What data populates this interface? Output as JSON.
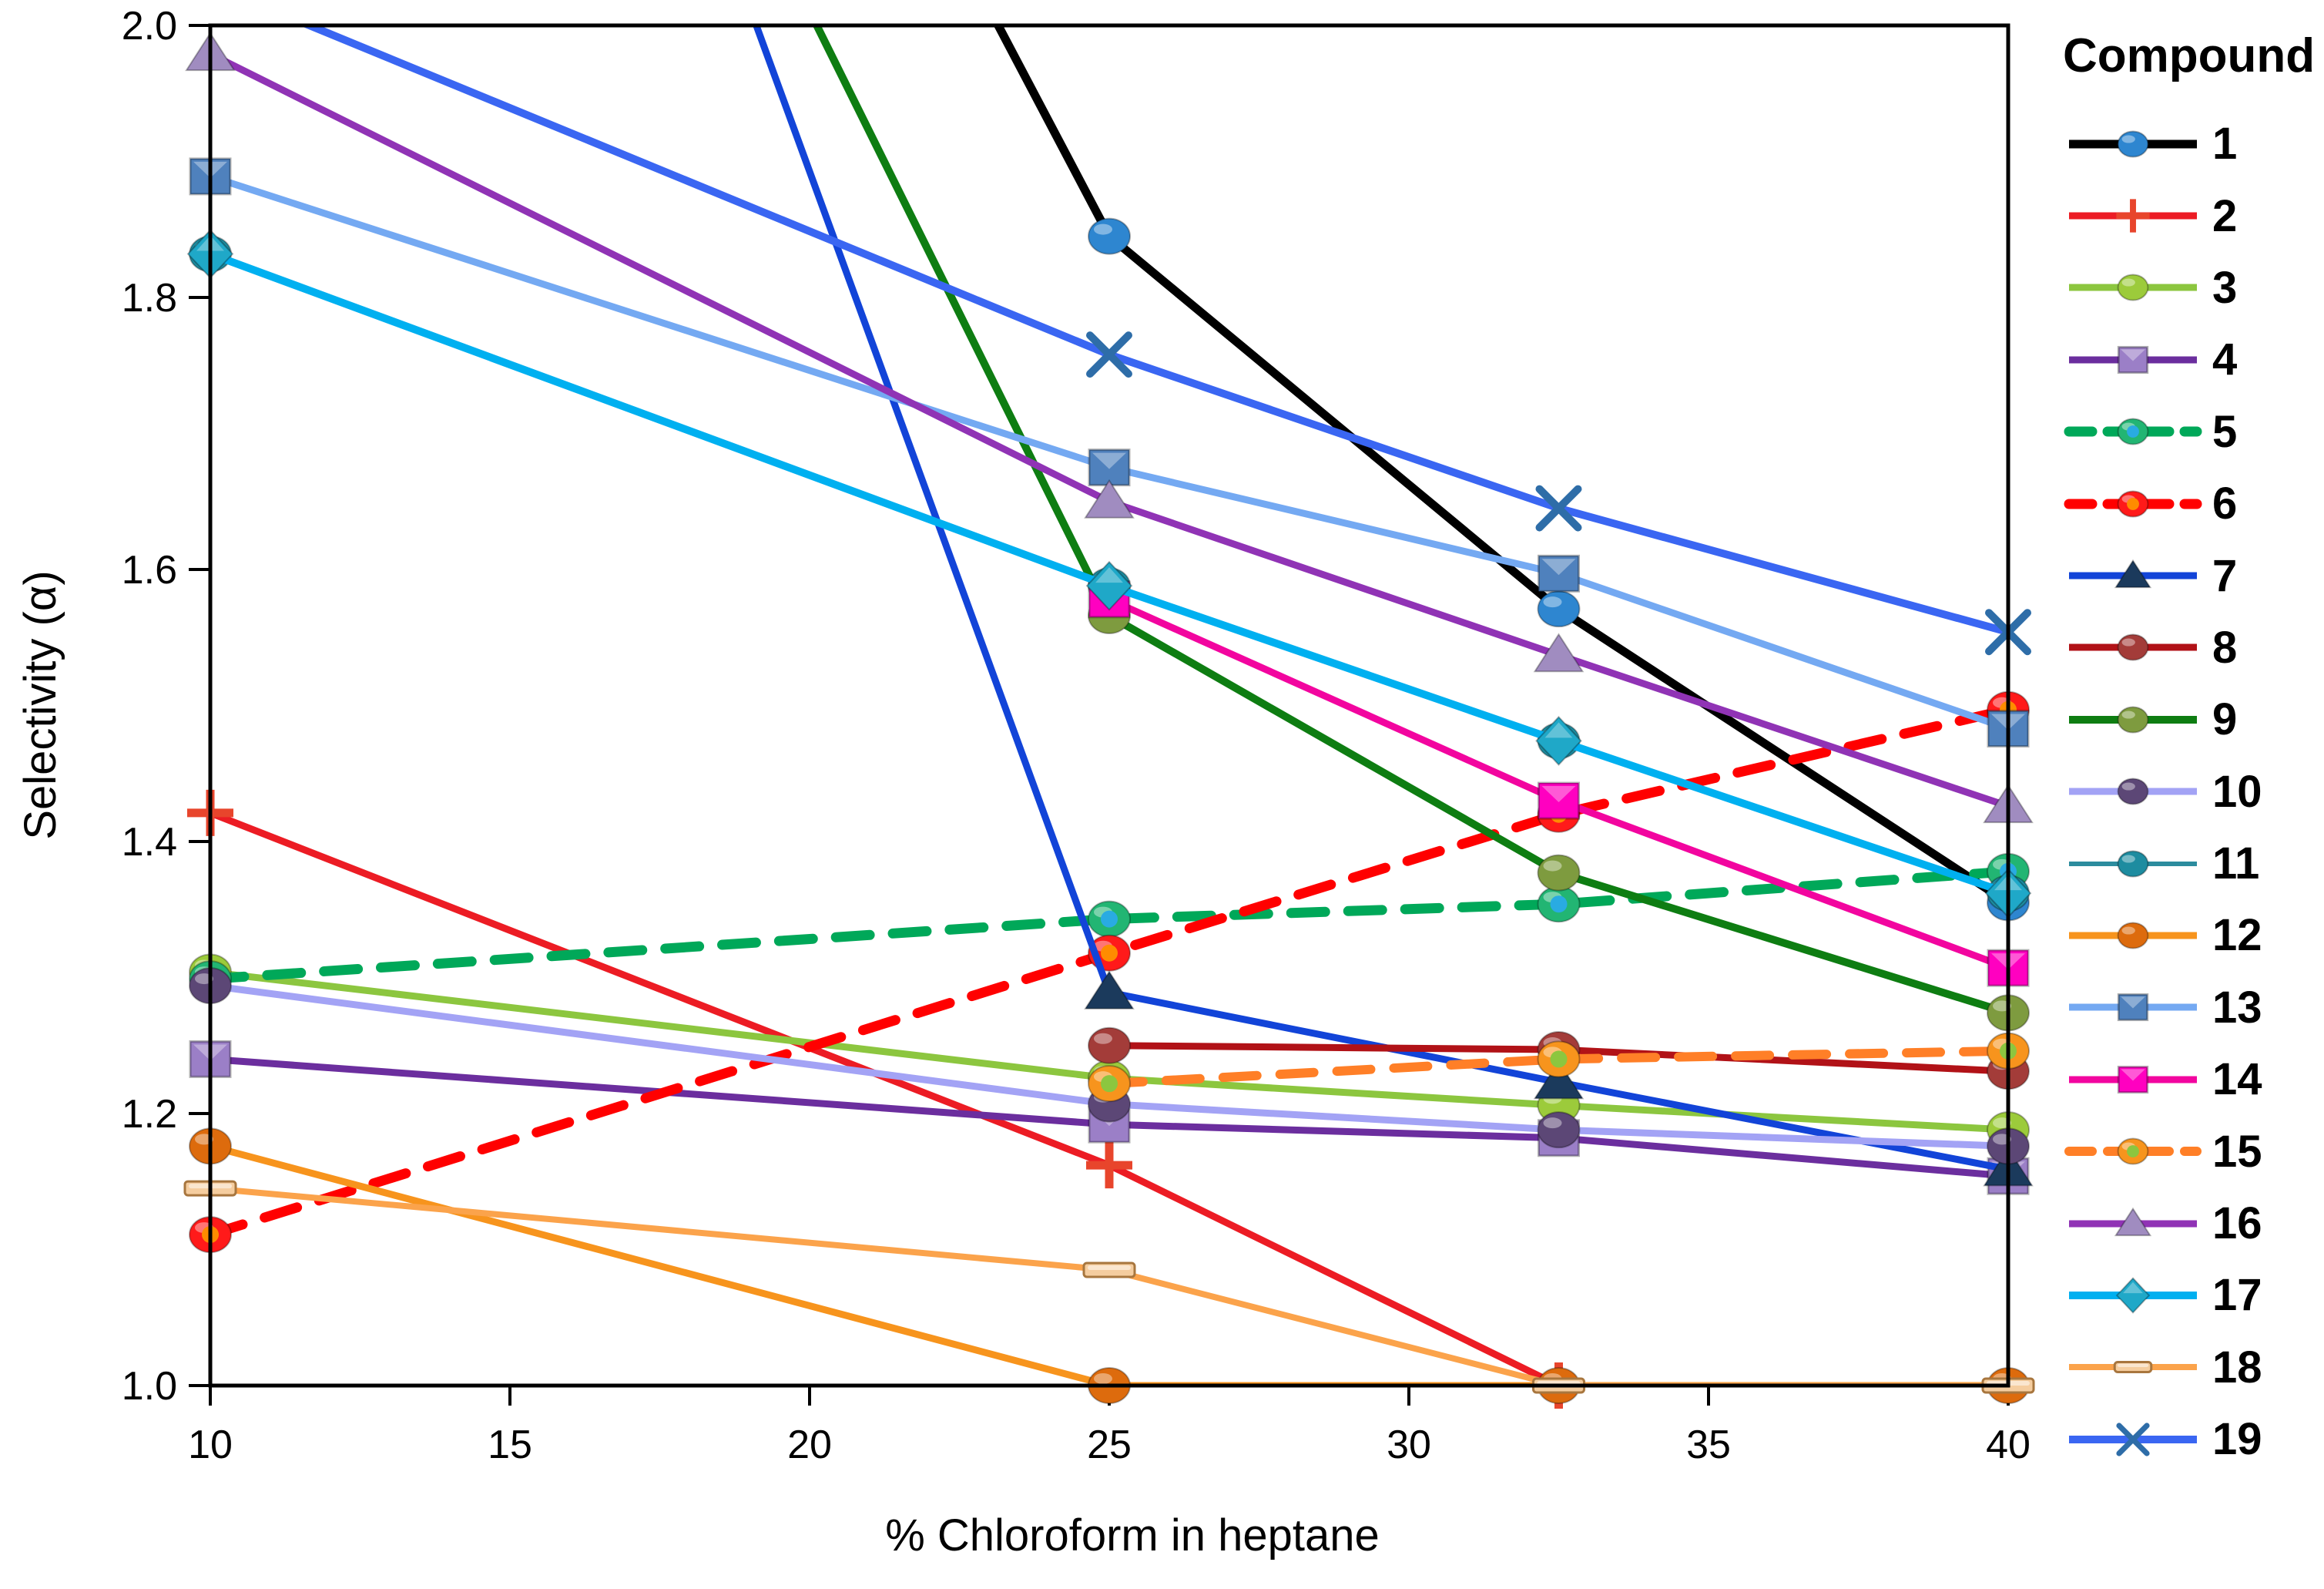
{
  "figure": {
    "background": "#FFFFFF"
  },
  "chart_data": {
    "type": "line",
    "title": "",
    "xlabel": "% Chloroform in heptane",
    "ylabel": "Selectivity (α)",
    "legend_title": "Compound",
    "legend_position": "right",
    "grid": false,
    "x": [
      10,
      25,
      32.5,
      40
    ],
    "xlim": [
      10,
      40
    ],
    "ylim": [
      1.0,
      2.0
    ],
    "x_ticks": [
      10,
      15,
      20,
      25,
      30,
      35,
      40
    ],
    "x_tick_labels": [
      "10",
      "15",
      "20",
      "25",
      "30",
      "35",
      "40"
    ],
    "y_ticks": [
      1.0,
      1.2,
      1.4,
      1.6,
      1.8,
      2.0
    ],
    "y_tick_labels": [
      "1.0",
      "1.2",
      "1.4",
      "1.6",
      "1.8",
      "2.0"
    ],
    "note": "Values greater than 2.0 are off-scale estimates: those line segments enter the plot from above the top border. null = no data point plotted.",
    "series": [
      {
        "label": "1",
        "line_color": "#000000",
        "line_width": 11,
        "dashed": false,
        "marker": "circle",
        "marker_color": "#2E86D0",
        "values": [
          3.1,
          1.845,
          1.571,
          1.355
        ]
      },
      {
        "label": "2",
        "line_color": "#EC1C24",
        "line_width": 9,
        "dashed": false,
        "marker": "plus",
        "marker_color": "#E8452C",
        "values": [
          1.421,
          1.162,
          1.0,
          null
        ]
      },
      {
        "label": "3",
        "line_color": "#8CC63F",
        "line_width": 9,
        "dashed": false,
        "marker": "circle",
        "marker_color": "#9CCB3B",
        "values": [
          1.304,
          1.226,
          1.206,
          1.188
        ]
      },
      {
        "label": "4",
        "line_color": "#6B2E9E",
        "line_width": 9,
        "dashed": false,
        "marker": "square",
        "marker_color": "#9B7FC7",
        "values": [
          1.24,
          1.192,
          1.182,
          1.154
        ]
      },
      {
        "label": "5",
        "line_color": "#00A859",
        "line_width": 13,
        "dashed": true,
        "marker": "circle",
        "marker_color": "#22B573",
        "marker_center": "#29ABE2",
        "values": [
          1.299,
          1.343,
          1.354,
          1.378
        ]
      },
      {
        "label": "6",
        "line_color": "#FF0000",
        "line_width": 13,
        "dashed": true,
        "marker": "circle",
        "marker_color": "#FF1A1A",
        "marker_center": "#FF8C00",
        "values": [
          1.111,
          1.318,
          1.42,
          1.497
        ]
      },
      {
        "label": "7",
        "line_color": "#1244D8",
        "line_width": 9,
        "dashed": false,
        "marker": "triangle",
        "marker_color": "#1B3A5C",
        "values": [
          3.1,
          1.289,
          1.223,
          1.159
        ]
      },
      {
        "label": "8",
        "line_color": "#B11217",
        "line_width": 9,
        "dashed": false,
        "marker": "circle",
        "marker_color": "#A33C39",
        "values": [
          null,
          1.25,
          1.247,
          1.231
        ]
      },
      {
        "label": "9",
        "line_color": "#0E7D12",
        "line_width": 10,
        "dashed": false,
        "marker": "circle",
        "marker_color": "#7E9B3F",
        "values": [
          2.9,
          1.566,
          1.377,
          1.274
        ]
      },
      {
        "label": "10",
        "line_color": "#A3A3F5",
        "line_width": 9,
        "dashed": false,
        "marker": "circle",
        "marker_color": "#5C4776",
        "values": [
          1.294,
          1.207,
          1.188,
          1.176
        ]
      },
      {
        "label": "11",
        "line_color": "#2C8C9E",
        "line_width": 4,
        "dashed": false,
        "marker": "circle",
        "marker_color": "#1D8CA0",
        "values": [
          1.832,
          1.588,
          1.474,
          1.362
        ]
      },
      {
        "label": "12",
        "line_color": "#F7941D",
        "line_width": 9,
        "dashed": false,
        "marker": "circle",
        "marker_color": "#DD6B0D",
        "values": [
          1.176,
          1.0,
          1.0,
          1.0
        ]
      },
      {
        "label": "13",
        "line_color": "#74A9F2",
        "line_width": 9,
        "dashed": false,
        "marker": "square",
        "marker_color": "#4F81BD",
        "values": [
          1.889,
          1.675,
          1.597,
          1.483
        ]
      },
      {
        "label": "14",
        "line_color": "#F2059F",
        "line_width": 9,
        "dashed": false,
        "marker": "square",
        "marker_color": "#FF00C0",
        "values": [
          null,
          1.578,
          1.43,
          1.307
        ]
      },
      {
        "label": "15",
        "line_color": "#FF7F27",
        "line_width": 12,
        "dashed": true,
        "marker": "circle",
        "marker_color": "#F7941D",
        "marker_center": "#8CC63F",
        "values": [
          null,
          1.222,
          1.24,
          1.246
        ]
      },
      {
        "label": "16",
        "line_color": "#9033B5",
        "line_width": 9,
        "dashed": false,
        "marker": "triangle",
        "marker_color": "#A08CC0",
        "values": [
          1.979,
          1.65,
          1.537,
          1.426
        ]
      },
      {
        "label": "17",
        "line_color": "#00B0F0",
        "line_width": 10,
        "dashed": false,
        "marker": "diamond",
        "marker_color": "#1FA8C8",
        "values": [
          1.832,
          1.588,
          1.474,
          1.362
        ]
      },
      {
        "label": "18",
        "line_color": "#FBA34B",
        "line_width": 8,
        "dashed": false,
        "marker": "dash",
        "marker_color": "#F5CD9F",
        "values": [
          1.145,
          1.085,
          1.0,
          1.0
        ]
      },
      {
        "label": "19",
        "line_color": "#3A66F2",
        "line_width": 10,
        "dashed": false,
        "marker": "x",
        "marker_color": "#2E6DA8",
        "values": [
          2.03,
          1.758,
          1.645,
          1.554
        ]
      }
    ]
  }
}
